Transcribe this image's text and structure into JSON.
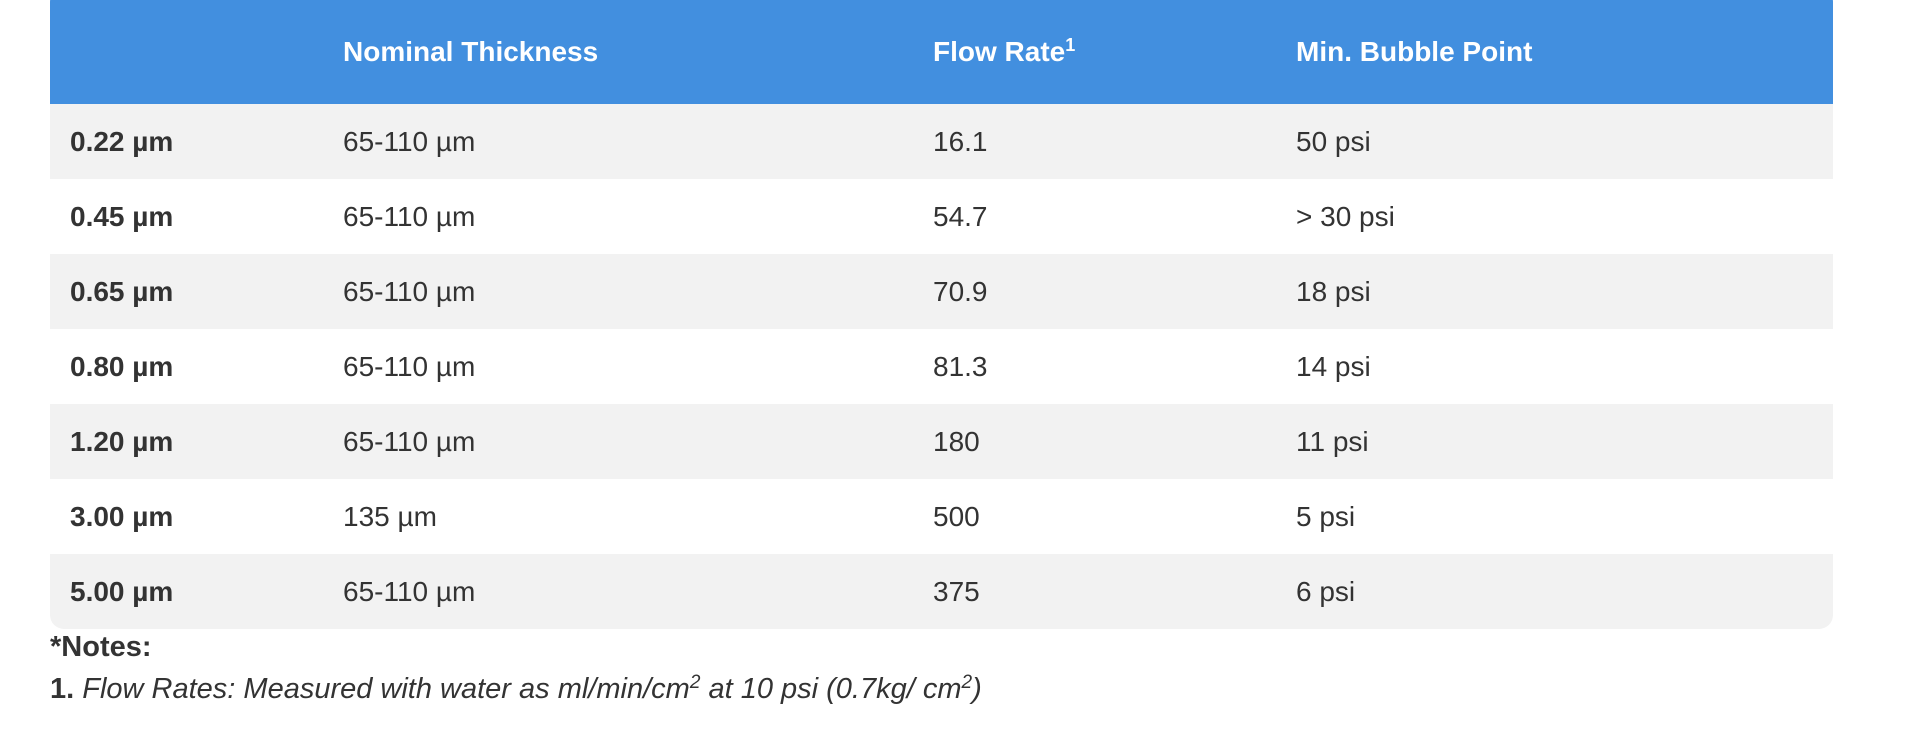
{
  "table": {
    "header": {
      "col1": "",
      "col2": "Nominal Thickness",
      "col3": "Flow Rate",
      "col3_sup": "1",
      "col4": "Min. Bubble Point"
    },
    "rows": [
      {
        "size": "0.22 µm",
        "thickness": "65-110 µm",
        "flow": "16.1",
        "bubble": "50 psi"
      },
      {
        "size": "0.45 µm",
        "thickness": "65-110 µm",
        "flow": "54.7",
        "bubble": "> 30 psi"
      },
      {
        "size": "0.65 µm",
        "thickness": "65-110 µm",
        "flow": "70.9",
        "bubble": "18 psi"
      },
      {
        "size": "0.80 µm",
        "thickness": "65-110 µm",
        "flow": "81.3",
        "bubble": "14 psi"
      },
      {
        "size": "1.20 µm",
        "thickness": "65-110 µm",
        "flow": "180",
        "bubble": "11 psi"
      },
      {
        "size": "3.00 µm",
        "thickness": "135 µm",
        "flow": "500",
        "bubble": "5 psi"
      },
      {
        "size": "5.00 µm",
        "thickness": "65-110 µm",
        "flow": "375",
        "bubble": "6 psi"
      }
    ]
  },
  "notes": {
    "title": "*Notes:",
    "items": [
      {
        "number": "1.",
        "text_a": "Flow Rates: Measured with water as ml/min/cm",
        "sup_a": "2",
        "text_b": " at 10 psi (0.7kg/ cm",
        "sup_b": "2",
        "text_c": ")"
      }
    ]
  },
  "colors": {
    "header_bg": "#428fdf",
    "row_alt_bg": "#f2f2f2",
    "text": "#333333"
  }
}
